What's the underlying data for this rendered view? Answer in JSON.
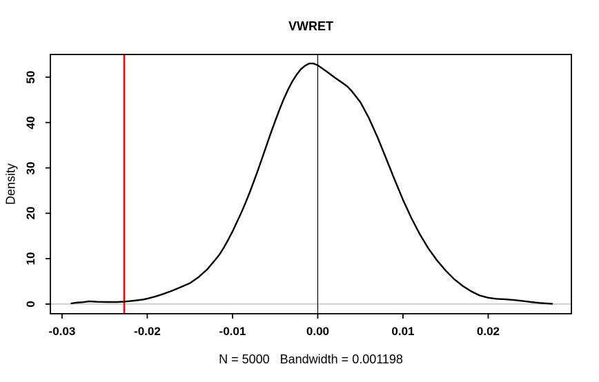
{
  "title": "VWRET",
  "chart_data": {
    "type": "line",
    "title": "VWRET",
    "xlabel": "N = 5000   Bandwidth = 0.001198",
    "ylabel": "Density",
    "xlim": [
      -0.03137,
      0.02976
    ],
    "ylim": [
      -2.13,
      54.99
    ],
    "grid": "off",
    "legend": "none",
    "x_ticks": [
      -0.03,
      -0.02,
      -0.01,
      0.0,
      0.01,
      0.02
    ],
    "x_tick_labels": [
      "-0.03",
      "-0.02",
      "-0.01",
      "0.00",
      "0.01",
      "0.02"
    ],
    "y_ticks": [
      0,
      10,
      20,
      30,
      40,
      50
    ],
    "y_tick_labels": [
      "0",
      "10",
      "20",
      "30",
      "40",
      "50"
    ],
    "colors": {
      "curve": "#000000",
      "axis": "#000000",
      "zero_line": "#bebebe",
      "vline_zero": "#000000",
      "vline_red": "#ff0000",
      "background": "#ffffff"
    },
    "reference_lines": [
      {
        "orientation": "h",
        "value": 0,
        "color": "#bebebe",
        "width": 1.4,
        "name": "zero-density-line"
      },
      {
        "orientation": "v",
        "value": -0.0227,
        "color": "#ff0000",
        "width": 2.6,
        "name": "red-reference-line"
      },
      {
        "orientation": "v",
        "value": 0.0,
        "color": "#000000",
        "width": 1.2,
        "name": "zero-vertical-line"
      }
    ],
    "series": [
      {
        "name": "kernel-density",
        "color": "#000000",
        "width": 2.4,
        "points": [
          [
            -0.0289,
            0.15
          ],
          [
            -0.0284,
            0.3
          ],
          [
            -0.0276,
            0.4
          ],
          [
            -0.0268,
            0.6
          ],
          [
            -0.0259,
            0.5
          ],
          [
            -0.0247,
            0.45
          ],
          [
            -0.0235,
            0.45
          ],
          [
            -0.0227,
            0.55
          ],
          [
            -0.0215,
            0.75
          ],
          [
            -0.0205,
            1.0
          ],
          [
            -0.02,
            1.2
          ],
          [
            -0.019,
            1.7
          ],
          [
            -0.018,
            2.3
          ],
          [
            -0.017,
            3.0
          ],
          [
            -0.0165,
            3.4
          ],
          [
            -0.016,
            3.8
          ],
          [
            -0.015,
            4.6
          ],
          [
            -0.014,
            5.9
          ],
          [
            -0.013,
            7.6
          ],
          [
            -0.012,
            9.8
          ],
          [
            -0.0115,
            11.0
          ],
          [
            -0.011,
            12.5
          ],
          [
            -0.0105,
            14.2
          ],
          [
            -0.01,
            16.0
          ],
          [
            -0.0095,
            18.0
          ],
          [
            -0.009,
            20.0
          ],
          [
            -0.0085,
            22.2
          ],
          [
            -0.008,
            24.5
          ],
          [
            -0.0075,
            27.0
          ],
          [
            -0.007,
            29.6
          ],
          [
            -0.0065,
            32.3
          ],
          [
            -0.006,
            35.0
          ],
          [
            -0.0055,
            37.7
          ],
          [
            -0.005,
            40.3
          ],
          [
            -0.0045,
            42.8
          ],
          [
            -0.004,
            45.1
          ],
          [
            -0.0035,
            47.2
          ],
          [
            -0.003,
            49.0
          ],
          [
            -0.0025,
            50.5
          ],
          [
            -0.002,
            51.7
          ],
          [
            -0.0015,
            52.5
          ],
          [
            -0.001,
            53.0
          ],
          [
            -0.0005,
            53.0
          ],
          [
            0.0,
            52.6
          ],
          [
            0.001,
            51.3
          ],
          [
            0.002,
            49.9
          ],
          [
            0.003,
            48.6
          ],
          [
            0.0035,
            47.9
          ],
          [
            0.004,
            46.9
          ],
          [
            0.005,
            44.5
          ],
          [
            0.006,
            41.0
          ],
          [
            0.007,
            36.8
          ],
          [
            0.008,
            32.2
          ],
          [
            0.009,
            27.5
          ],
          [
            0.01,
            23.0
          ],
          [
            0.011,
            18.9
          ],
          [
            0.012,
            15.3
          ],
          [
            0.013,
            12.2
          ],
          [
            0.014,
            9.6
          ],
          [
            0.015,
            7.4
          ],
          [
            0.016,
            5.5
          ],
          [
            0.017,
            4.0
          ],
          [
            0.018,
            2.8
          ],
          [
            0.019,
            1.9
          ],
          [
            0.02,
            1.4
          ],
          [
            0.021,
            1.15
          ],
          [
            0.022,
            1.05
          ],
          [
            0.023,
            0.9
          ],
          [
            0.024,
            0.7
          ],
          [
            0.025,
            0.45
          ],
          [
            0.026,
            0.25
          ],
          [
            0.027,
            0.12
          ],
          [
            0.0275,
            0.06
          ]
        ]
      }
    ],
    "annotations": {
      "n": 5000,
      "bandwidth": 0.001198,
      "peak_density": 53.0,
      "peak_x": -0.001,
      "red_line_x": -0.0227
    }
  }
}
